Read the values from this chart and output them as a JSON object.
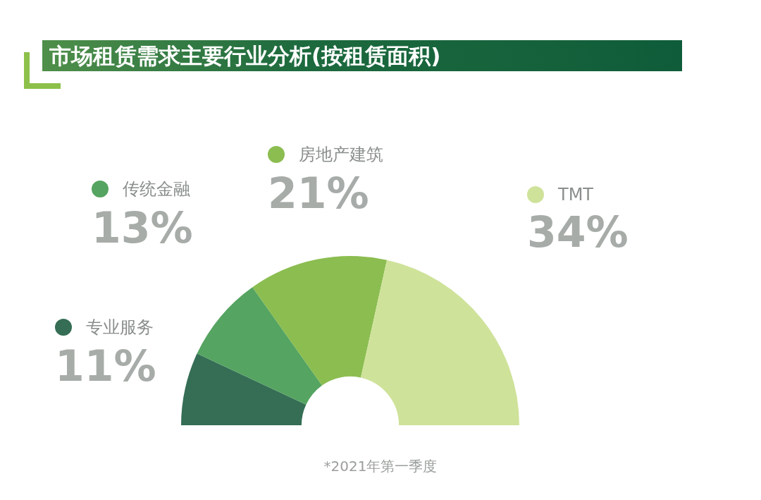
{
  "chart_data": {
    "type": "donut",
    "legend": "top",
    "title": "市场租赁需求主要行业分析(按租赁面积)",
    "categories": [
      "专业服务",
      "传统金融",
      "房地产建筑",
      "TMT"
    ],
    "values": [
      11,
      13,
      21,
      34
    ],
    "colors": [
      "#356e55",
      "#55a461",
      "#8bbd50",
      "#cfe29a"
    ],
    "value_labels": [
      "11%",
      "13%",
      "21%",
      "34%"
    ],
    "annotations": [
      "*2021年第一季度"
    ]
  }
}
